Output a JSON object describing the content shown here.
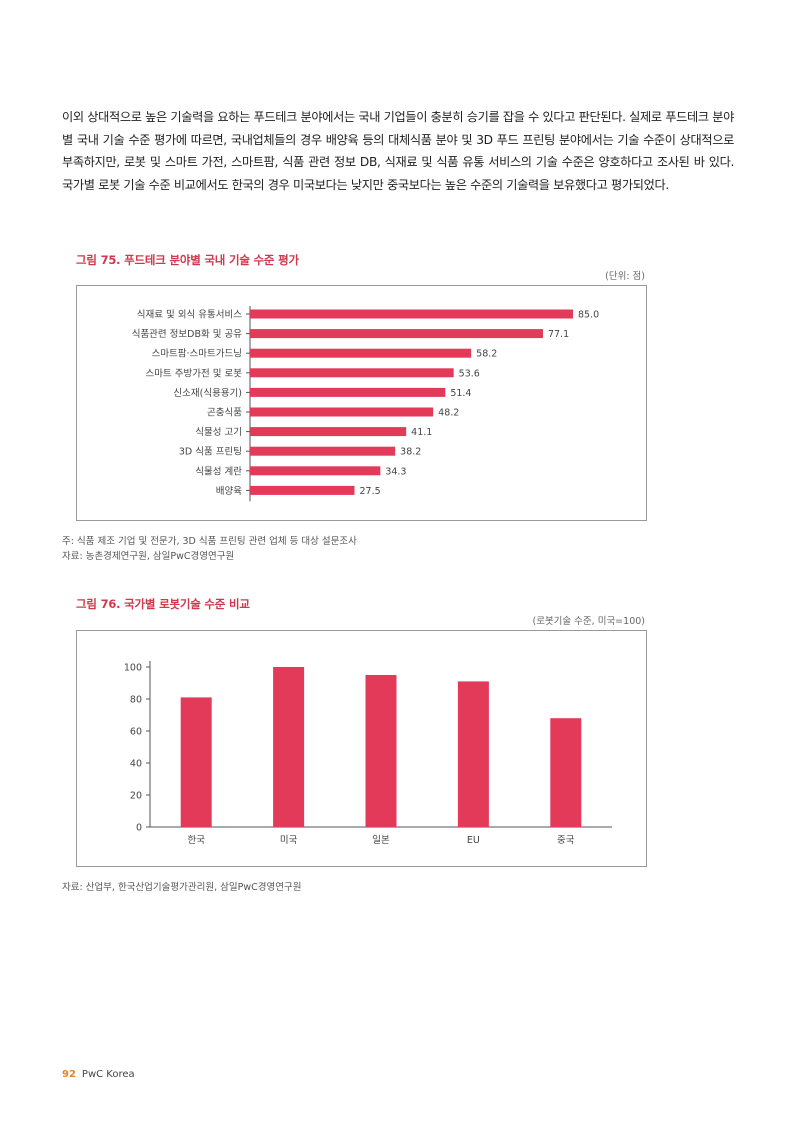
{
  "paragraph": "이외 상대적으로 높은 기술력을 요하는 푸드테크 분야에서는 국내 기업들이 충분히 승기를 잡을 수 있다고 판단된다. 실제로 푸드테크 분야별 국내 기술 수준 평가에 따르면, 국내업체들의 경우 배양육 등의 대체식품 분야 및 3D 푸드 프린팅 분야에서는 기술 수준이 상대적으로 부족하지만, 로봇 및 스마트 가전, 스마트팜, 식품 관련 정보 DB, 식재료 및 식품 유통 서비스의 기술 수준은 양호하다고 조사된 바 있다. 국가별 로봇 기술 수준 비교에서도 한국의 경우 미국보다는 낮지만 중국보다는 높은 수준의 기술력을 보유했다고 평가되었다.",
  "figure75": {
    "title": "그림 75. 푸드테크 분야별 국내 기술 수준 평가",
    "unit": "(단위: 점)",
    "note": "주: 식품 제조 기업 및 전문가, 3D 식품 프린팅 관련 업체 등 대상 설문조사",
    "source": "자료: 농촌경제연구원, 삼일PwC경영연구원"
  },
  "figure76": {
    "title": "그림 76. 국가별 로봇기술 수준 비교",
    "unit": "(로봇기술 수준, 미국=100)",
    "source": "자료: 산업부, 한국산업기술평가관리원, 삼일PwC경영연구원"
  },
  "footer": {
    "page": "92",
    "brand": "PwC Korea"
  },
  "colors": {
    "bar": "#e33a5a",
    "title": "#d0384d",
    "page_number": "#e0852c"
  },
  "chart_data": [
    {
      "type": "bar",
      "orientation": "horizontal",
      "categories": [
        "식재료 및 외식 유통서비스",
        "식품관련 정보DB화 및 공유",
        "스마트팜·스마트가드닝",
        "스마트 주방가전 및 로봇",
        "신소재(식용용기)",
        "곤충식품",
        "식물성 고기",
        "3D 식품 프린팅",
        "식물성 계란",
        "배양육"
      ],
      "values": [
        85.0,
        77.1,
        58.2,
        53.6,
        51.4,
        48.2,
        41.1,
        38.2,
        34.3,
        27.5
      ],
      "value_labels": [
        "85.0",
        "77.1",
        "58.2",
        "53.6",
        "51.4",
        "48.2",
        "41.1",
        "38.2",
        "34.3",
        "27.5"
      ],
      "xlim": [
        0,
        100
      ],
      "grid": false
    },
    {
      "type": "bar",
      "orientation": "vertical",
      "categories": [
        "한국",
        "미국",
        "일본",
        "EU",
        "중국"
      ],
      "values": [
        81,
        100,
        95,
        91,
        68
      ],
      "ylim": [
        0,
        100
      ],
      "yticks": [
        0,
        20,
        40,
        60,
        80,
        100
      ],
      "grid": false
    }
  ]
}
